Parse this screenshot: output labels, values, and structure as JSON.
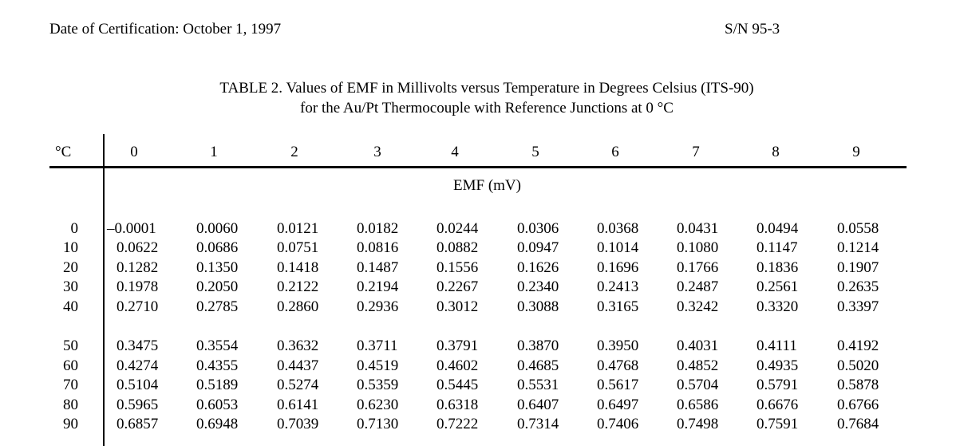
{
  "header": {
    "date": "Date of Certification: October 1, 1997",
    "serial": "S/N 95-3"
  },
  "caption": {
    "line1": "TABLE 2.  Values of EMF in Millivolts versus Temperature in Degrees Celsius (ITS-90)",
    "line2": "for the Au/Pt Thermocouple with Reference Junctions at 0 °C"
  },
  "table": {
    "corner_label": "°C",
    "unit_label": "EMF (mV)",
    "columns": [
      "0",
      "1",
      "2",
      "3",
      "4",
      "5",
      "6",
      "7",
      "8",
      "9"
    ],
    "rows": [
      {
        "t": "0",
        "v": [
          "–0.0001",
          "0.0060",
          "0.0121",
          "0.0182",
          "0.0244",
          "0.0306",
          "0.0368",
          "0.0431",
          "0.0494",
          "0.0558"
        ]
      },
      {
        "t": "10",
        "v": [
          "0.0622",
          "0.0686",
          "0.0751",
          "0.0816",
          "0.0882",
          "0.0947",
          "0.1014",
          "0.1080",
          "0.1147",
          "0.1214"
        ]
      },
      {
        "t": "20",
        "v": [
          "0.1282",
          "0.1350",
          "0.1418",
          "0.1487",
          "0.1556",
          "0.1626",
          "0.1696",
          "0.1766",
          "0.1836",
          "0.1907"
        ]
      },
      {
        "t": "30",
        "v": [
          "0.1978",
          "0.2050",
          "0.2122",
          "0.2194",
          "0.2267",
          "0.2340",
          "0.2413",
          "0.2487",
          "0.2561",
          "0.2635"
        ]
      },
      {
        "t": "40",
        "v": [
          "0.2710",
          "0.2785",
          "0.2860",
          "0.2936",
          "0.3012",
          "0.3088",
          "0.3165",
          "0.3242",
          "0.3320",
          "0.3397"
        ]
      },
      {
        "t": "50",
        "v": [
          "0.3475",
          "0.3554",
          "0.3632",
          "0.3711",
          "0.3791",
          "0.3870",
          "0.3950",
          "0.4031",
          "0.4111",
          "0.4192"
        ]
      },
      {
        "t": "60",
        "v": [
          "0.4274",
          "0.4355",
          "0.4437",
          "0.4519",
          "0.4602",
          "0.4685",
          "0.4768",
          "0.4852",
          "0.4935",
          "0.5020"
        ]
      },
      {
        "t": "70",
        "v": [
          "0.5104",
          "0.5189",
          "0.5274",
          "0.5359",
          "0.5445",
          "0.5531",
          "0.5617",
          "0.5704",
          "0.5791",
          "0.5878"
        ]
      },
      {
        "t": "80",
        "v": [
          "0.5965",
          "0.6053",
          "0.6141",
          "0.6230",
          "0.6318",
          "0.6407",
          "0.6497",
          "0.6586",
          "0.6676",
          "0.6766"
        ]
      },
      {
        "t": "90",
        "v": [
          "0.6857",
          "0.6948",
          "0.7039",
          "0.7130",
          "0.7222",
          "0.7314",
          "0.7406",
          "0.7498",
          "0.7591",
          "0.7684"
        ]
      }
    ]
  }
}
